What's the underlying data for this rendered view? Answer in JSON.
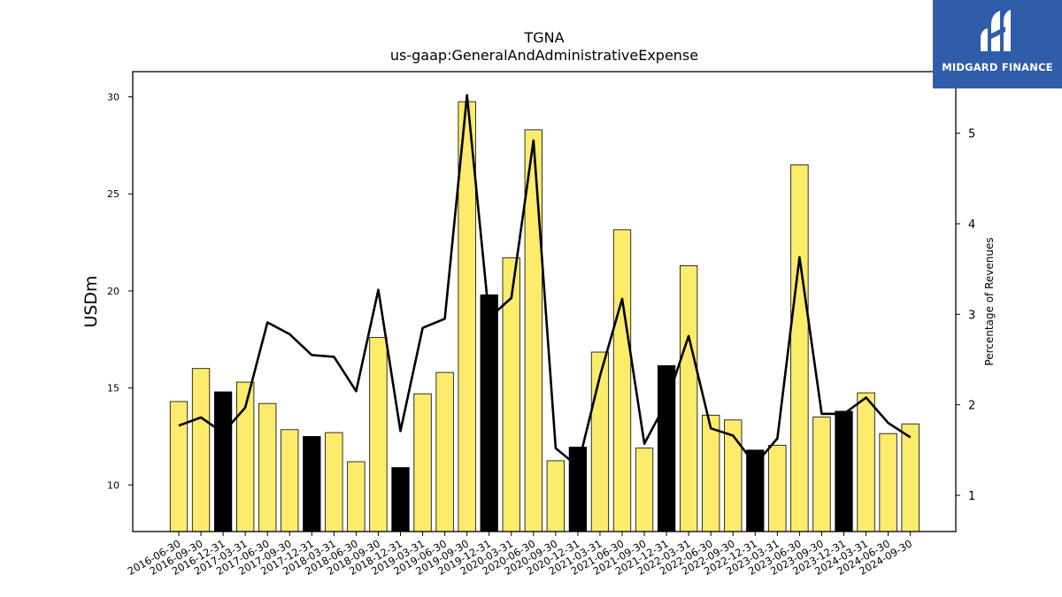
{
  "chart_data": {
    "type": "bar",
    "title": "TGNA",
    "subtitle": "us-gaap:GeneralAndAdministrativeExpense",
    "ylabel": "USDm",
    "y2label": "Percentage of Revenues",
    "ylim": [
      7.6,
      31.3
    ],
    "y2lim": [
      0.6,
      5.68
    ],
    "yticks": [
      10,
      15,
      20,
      25,
      30
    ],
    "y2ticks": [
      1,
      2,
      3,
      4,
      5
    ],
    "categories": [
      "2016-06-30",
      "2016-09-30",
      "2016-12-31",
      "2017-03-31",
      "2017-06-30",
      "2017-09-30",
      "2017-12-31",
      "2018-03-31",
      "2018-06-30",
      "2018-09-30",
      "2018-12-31",
      "2019-03-31",
      "2019-06-30",
      "2019-09-30",
      "2019-12-31",
      "2020-03-31",
      "2020-06-30",
      "2020-09-30",
      "2020-12-31",
      "2021-03-31",
      "2021-06-30",
      "2021-09-30",
      "2021-12-31",
      "2022-03-31",
      "2022-06-30",
      "2022-09-30",
      "2022-12-31",
      "2023-03-31",
      "2023-06-30",
      "2023-09-30",
      "2023-12-31",
      "2024-03-31",
      "2024-06-30",
      "2024-09-30"
    ],
    "series": [
      {
        "type": "bar",
        "values": [
          14.3,
          16.0,
          14.8,
          15.3,
          14.2,
          12.85,
          12.5,
          12.7,
          11.2,
          17.6,
          10.9,
          14.7,
          15.8,
          29.75,
          19.8,
          21.7,
          28.3,
          11.25,
          11.95,
          16.85,
          23.15,
          11.9,
          16.15,
          21.3,
          13.6,
          13.35,
          11.8,
          12.05,
          26.5,
          13.5,
          13.8,
          14.75,
          12.65,
          13.15
        ],
        "colors": [
          "#fdeb6c",
          "#fdeb6c",
          "#000000",
          "#fdeb6c",
          "#fdeb6c",
          "#fdeb6c",
          "#000000",
          "#fdeb6c",
          "#fdeb6c",
          "#fdeb6c",
          "#000000",
          "#fdeb6c",
          "#fdeb6c",
          "#fdeb6c",
          "#000000",
          "#fdeb6c",
          "#fdeb6c",
          "#fdeb6c",
          "#000000",
          "#fdeb6c",
          "#fdeb6c",
          "#fdeb6c",
          "#000000",
          "#fdeb6c",
          "#fdeb6c",
          "#fdeb6c",
          "#000000",
          "#fdeb6c",
          "#fdeb6c",
          "#fdeb6c",
          "#000000",
          "#fdeb6c",
          "#fdeb6c",
          "#fdeb6c"
        ]
      },
      {
        "type": "line",
        "axis": "right",
        "color": "#000000",
        "values": [
          1.77,
          1.86,
          1.69,
          1.97,
          2.91,
          2.78,
          2.55,
          2.53,
          2.15,
          3.27,
          1.71,
          2.85,
          2.95,
          5.42,
          2.96,
          3.18,
          4.92,
          1.52,
          1.32,
          2.32,
          3.17,
          1.57,
          2.03,
          2.76,
          1.74,
          1.66,
          1.34,
          1.63,
          3.63,
          1.9,
          1.9,
          2.08,
          1.8,
          1.64
        ]
      }
    ],
    "grid": false,
    "legend": "none"
  },
  "logo": {
    "text": "MIDGARD FINANCE",
    "bg": "#2f5daa"
  }
}
